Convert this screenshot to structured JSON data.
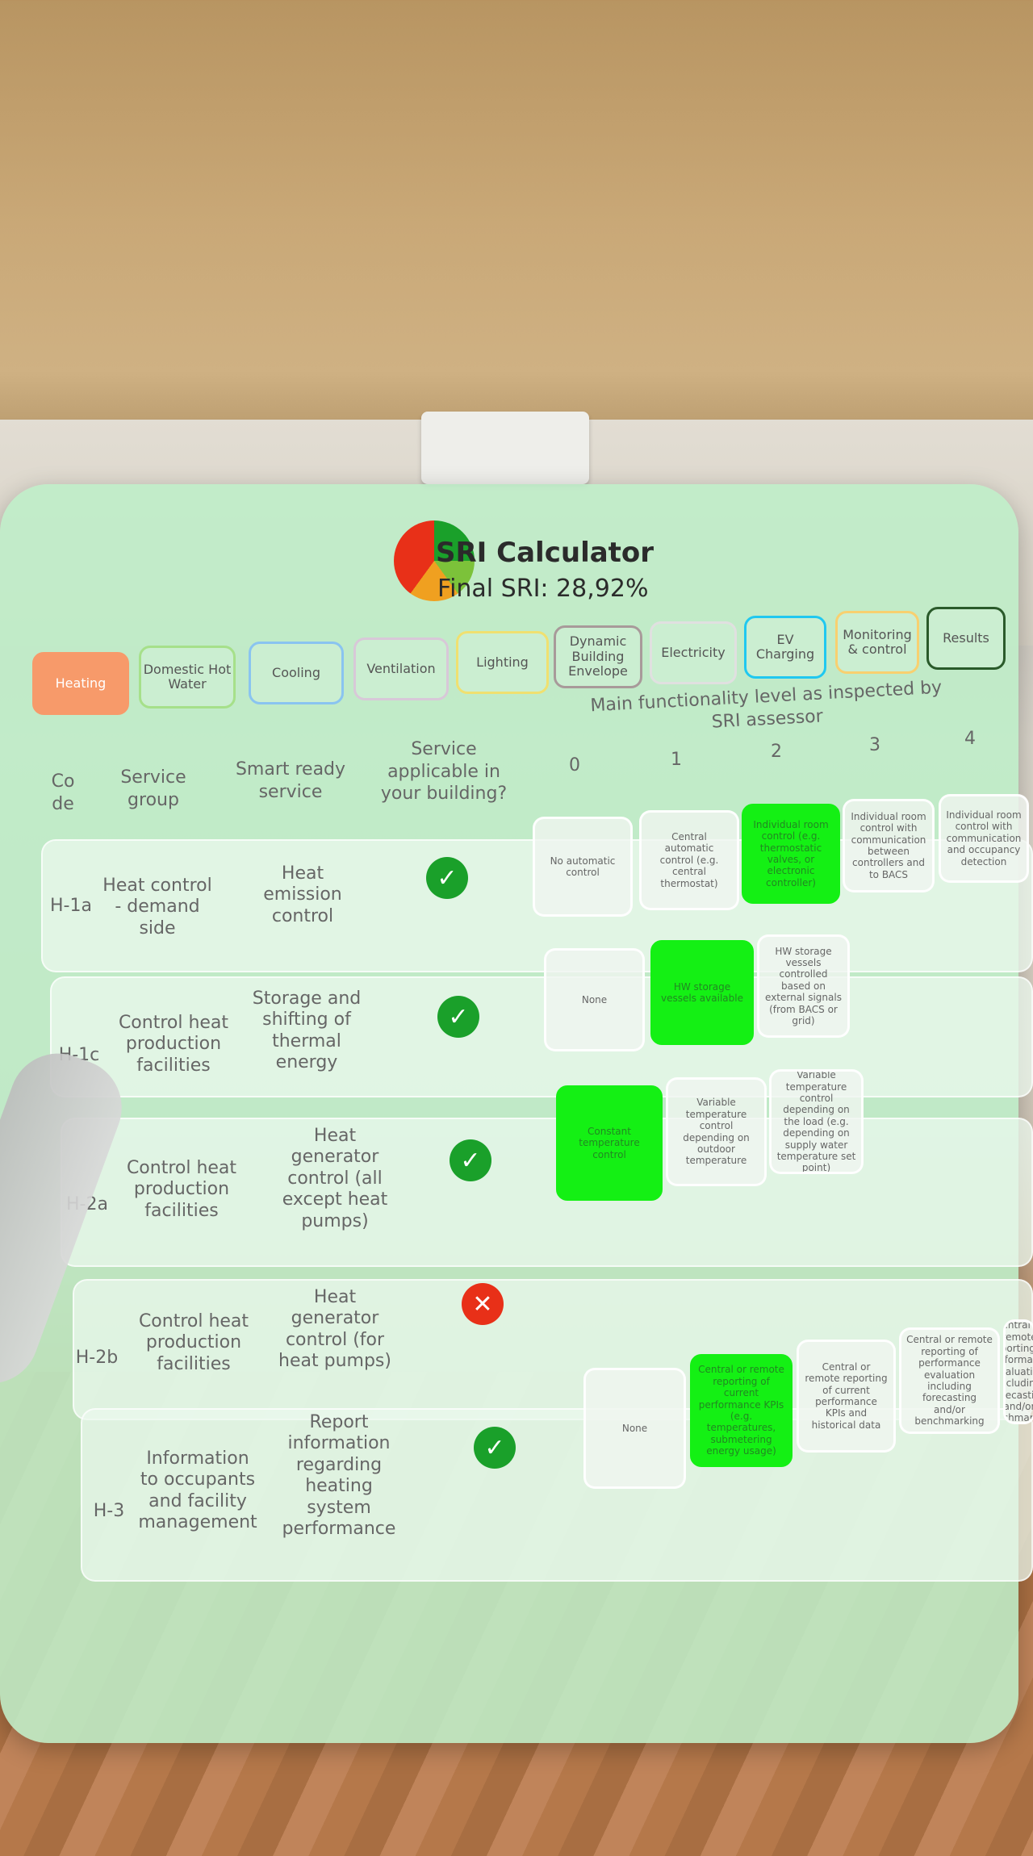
{
  "app": {
    "title": "SRI Calculator",
    "final_sri": "Final SRI: 28,92%"
  },
  "tabs": [
    {
      "label": "Heating",
      "color": "#f79a6a",
      "active": true
    },
    {
      "label": "Domestic Hot Water",
      "color": "#a6e08a"
    },
    {
      "label": "Cooling",
      "color": "#8ac4f0"
    },
    {
      "label": "Ventilation",
      "color": "#d8c8d8"
    },
    {
      "label": "Lighting",
      "color": "#f0e070"
    },
    {
      "label": "Dynamic Building Envelope",
      "color": "#a89a9a"
    },
    {
      "label": "Electricity",
      "color": "#e0e0e0"
    },
    {
      "label": "EV Charging",
      "color": "#20c8f0"
    },
    {
      "label": "Monitoring & control",
      "color": "#f8d070"
    },
    {
      "label": "Results",
      "color": "#2a5a2a"
    }
  ],
  "headers": {
    "code": "Code",
    "group": "Service group",
    "service": "Smart ready service",
    "applicable": "Service applicable in your building?",
    "levels_title": "Main functionality level as inspected by SRI assessor",
    "levels": [
      "0",
      "1",
      "2",
      "3",
      "4"
    ]
  },
  "rows": [
    {
      "code": "H-1a",
      "group": "Heat control - demand side",
      "service": "Heat emission control",
      "applicable": true,
      "selected": 2,
      "cells": [
        "No automatic control",
        "Central automatic control (e.g. central thermostat)",
        "Individual room control (e.g. thermostatic valves, or electronic controller)",
        "Individual room control with communication between controllers and to BACS",
        "Individual room control with communication and occupancy detection"
      ]
    },
    {
      "code": "H-1c",
      "group": "Control heat production facilities",
      "service": "Storage and shifting of thermal energy",
      "applicable": true,
      "selected": 1,
      "cells": [
        "None",
        "HW storage vessels available",
        "HW storage vessels controlled based on external signals (from BACS or grid)"
      ]
    },
    {
      "code": "H-2a",
      "group": "Control heat production facilities",
      "service": "Heat generator control (all except heat pumps)",
      "applicable": true,
      "selected": 0,
      "cells": [
        "Constant temperature control",
        "Variable temperature control depending on outdoor temperature",
        "Variable temperature control depending on the load (e.g. depending on supply water temperature set point)"
      ]
    },
    {
      "code": "H-2b",
      "group": "Control heat production facilities",
      "service": "Heat generator control (for heat pumps)",
      "applicable": false,
      "cells": []
    },
    {
      "code": "H-3",
      "group": "Information to occupants and facility management",
      "service": "Report information regarding heating system performance",
      "applicable": true,
      "selected": 1,
      "cells": [
        "None",
        "Central or remote reporting of current performance KPIs (e.g. temperatures, submetering energy usage)",
        "Central or remote reporting of current performance KPIs and historical data",
        "Central or remote reporting of performance evaluation including forecasting and/or benchmarking",
        "Central or remote reporting of performance evaluation including forecasting and/or benchmarking"
      ]
    }
  ],
  "icons": {
    "applicable_yes": "check-circle-icon",
    "applicable_no": "x-circle-icon"
  },
  "colors": {
    "selected": "#14f014",
    "yes": "#1aa02a",
    "no": "#e83018"
  }
}
